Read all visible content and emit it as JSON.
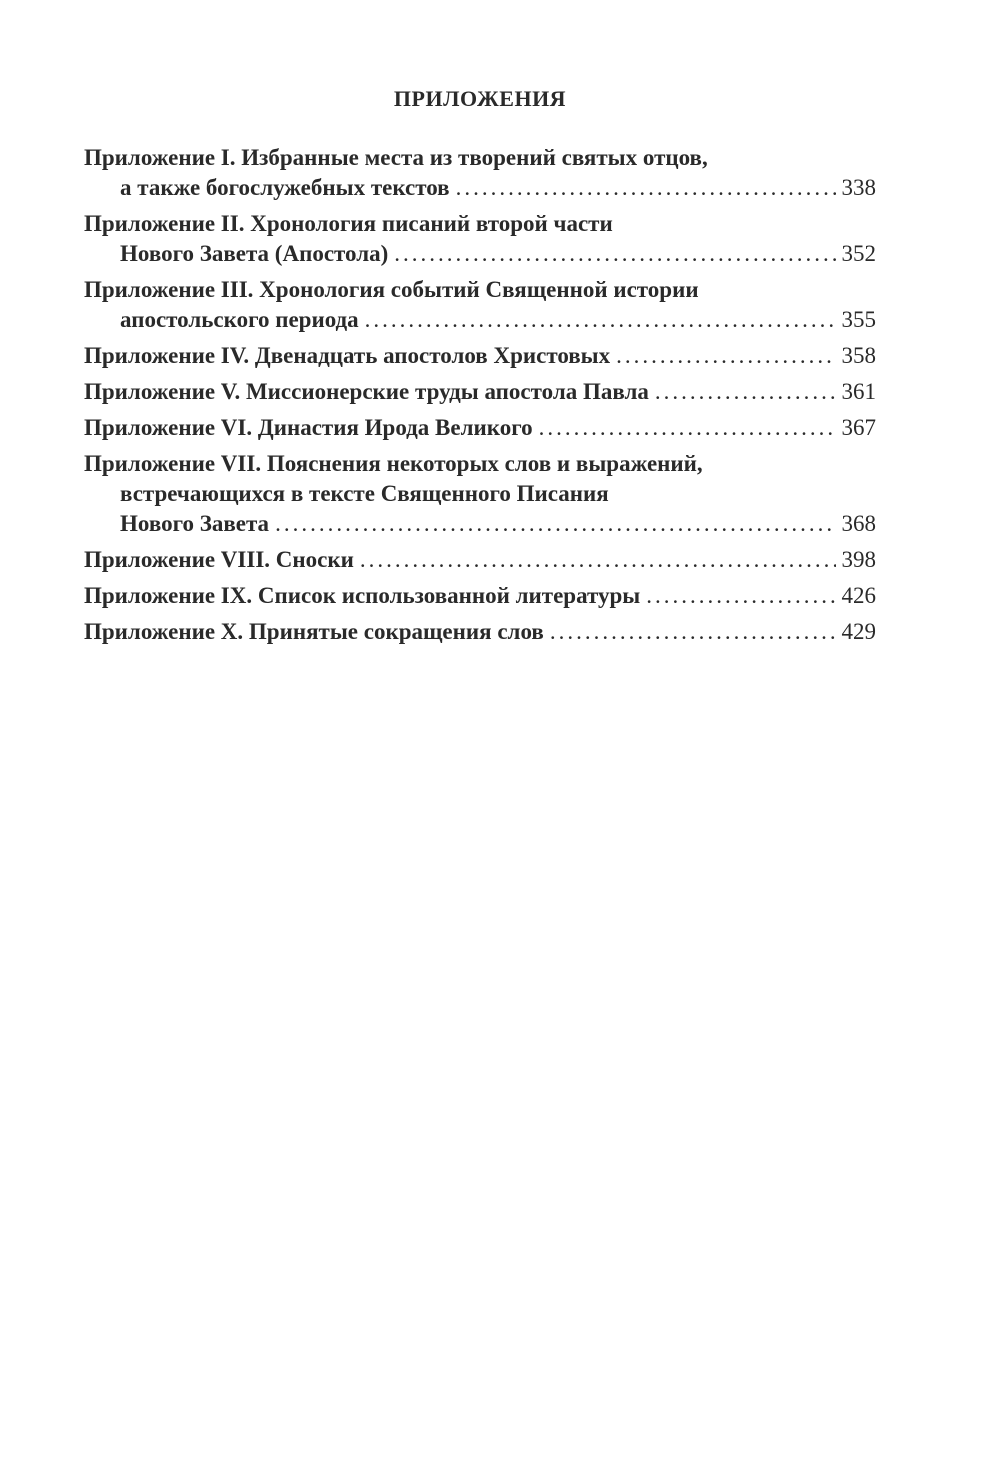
{
  "title": "ПРИЛОЖЕНИЯ",
  "entries": [
    {
      "lines": [
        "Приложение I. Избранные места из творений святых отцов,",
        "а также богослужебных текстов"
      ],
      "page": "338"
    },
    {
      "lines": [
        "Приложение II. Хронология писаний второй части",
        "Нового Завета (Апостола)"
      ],
      "page": "352"
    },
    {
      "lines": [
        "Приложение III. Хронология событий Священной истории",
        "апостольского периода"
      ],
      "page": "355"
    },
    {
      "lines": [
        "Приложение IV. Двенадцать апостолов Христовых"
      ],
      "page": "358"
    },
    {
      "lines": [
        "Приложение V. Миссионерские труды апостола Павла"
      ],
      "page": "361"
    },
    {
      "lines": [
        "Приложение VI. Династия Ирода Великого"
      ],
      "page": "367"
    },
    {
      "lines": [
        "Приложение VII. Пояснения некоторых слов и выражений,",
        "встречающихся в тексте Священного Писания",
        "Нового Завета"
      ],
      "page": "368"
    },
    {
      "lines": [
        "Приложение VIII. Сноски"
      ],
      "page": "398"
    },
    {
      "lines": [
        "Приложение IX. Список использованной литературы"
      ],
      "page": "426"
    },
    {
      "lines": [
        "Приложение X. Принятые сокращения слов"
      ],
      "page": "429"
    }
  ]
}
